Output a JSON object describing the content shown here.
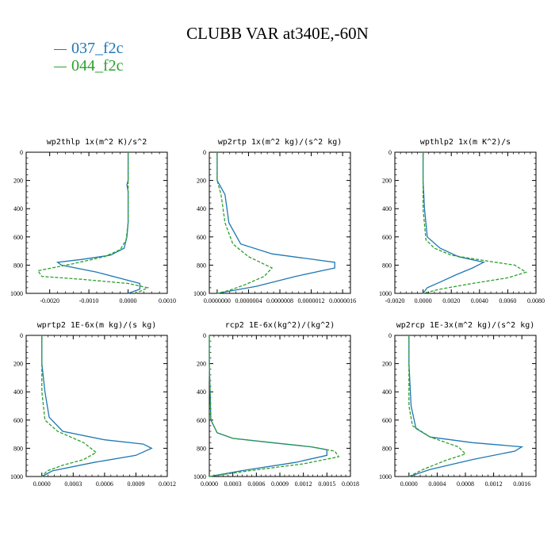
{
  "title": "CLUBB VAR at340E,-60N",
  "legend": [
    {
      "label": "037_f2c",
      "color": "#1f77b4"
    },
    {
      "label": "044_f2c",
      "color": "#2ca02c"
    }
  ],
  "chart_data": [
    {
      "type": "line",
      "title": "wp2thlp   1x(m^2 K)/s^2",
      "xlim": [
        -0.0026,
        0.001
      ],
      "ylim": [
        1000,
        0
      ],
      "xticks": [
        -0.002,
        -0.001,
        0.0,
        0.001
      ],
      "xtick_labels": [
        "-0.0020",
        "-0.0010",
        "0.0000",
        "0.0010"
      ],
      "yticks": [
        0,
        200,
        400,
        600,
        800,
        1000
      ],
      "series": [
        {
          "name": "037_f2c",
          "x": [
            0,
            0,
            -3e-05,
            0,
            0,
            -3e-05,
            -0.0001,
            -0.00045,
            -0.0012,
            -0.0018,
            -0.0017,
            -0.0008,
            0.0003,
            0.0003,
            0
          ],
          "y": [
            0,
            200,
            230,
            280,
            500,
            600,
            680,
            730,
            760,
            780,
            800,
            850,
            930,
            970,
            1000
          ]
        },
        {
          "name": "044_f2c",
          "x": [
            0,
            0,
            0,
            0,
            -5e-05,
            -0.0002,
            -0.0006,
            -0.0014,
            -0.0023,
            -0.0022,
            -0.0012,
            0,
            0.0005,
            0.0002
          ],
          "y": [
            0,
            200,
            280,
            500,
            620,
            690,
            740,
            790,
            840,
            880,
            900,
            930,
            960,
            1000
          ]
        }
      ]
    },
    {
      "type": "line",
      "title": "wp2rtp   1x(m^2 kg)/(s^2 kg)",
      "xlim": [
        -1e-07,
        1.7e-06
      ],
      "ylim": [
        1000,
        0
      ],
      "xticks": [
        0.0,
        4e-07,
        8e-07,
        1.2e-06,
        1.6e-06
      ],
      "xtick_labels": [
        "0.0000000",
        "0.0000004",
        "0.0000008",
        "0.0000012",
        "0.0000016"
      ],
      "yticks": [
        0,
        200,
        400,
        600,
        800,
        1000
      ],
      "series": [
        {
          "name": "037_f2c",
          "x": [
            0,
            0,
            1e-07,
            1.5e-07,
            3e-07,
            7e-07,
            1.5e-06,
            1.5e-06,
            1e-06,
            5e-07,
            0
          ],
          "y": [
            0,
            200,
            300,
            500,
            650,
            720,
            780,
            820,
            880,
            950,
            1000
          ]
        },
        {
          "name": "044_f2c",
          "x": [
            0,
            0,
            5e-08,
            1e-07,
            2e-07,
            4e-07,
            7e-07,
            6e-07,
            3.5e-07,
            1.5e-07,
            0
          ],
          "y": [
            0,
            200,
            300,
            500,
            650,
            740,
            820,
            880,
            940,
            980,
            1000
          ]
        }
      ]
    },
    {
      "type": "line",
      "title": "wpthlp2   1x(m K^2)/s",
      "xlim": [
        -0.002,
        0.008
      ],
      "ylim": [
        1000,
        0
      ],
      "xticks": [
        -0.002,
        0.0,
        0.002,
        0.004,
        0.006,
        0.008
      ],
      "xtick_labels": [
        "-0.0020",
        "0.0000",
        "0.0020",
        "0.0040",
        "0.0060",
        "0.0080"
      ],
      "yticks": [
        0,
        200,
        400,
        600,
        800,
        1000
      ],
      "series": [
        {
          "name": "037_f2c",
          "x": [
            0,
            0,
            0.0001,
            0.0003,
            0.0012,
            0.0025,
            0.0043,
            0.0035,
            0.0023,
            0.0012,
            0.0003,
            0
          ],
          "y": [
            0,
            200,
            400,
            600,
            680,
            740,
            780,
            820,
            870,
            920,
            960,
            1000
          ]
        },
        {
          "name": "044_f2c",
          "x": [
            0,
            0,
            0,
            0.0002,
            0.0008,
            0.002,
            0.0045,
            0.0065,
            0.0073,
            0.006,
            0.0035,
            0.0012,
            0
          ],
          "y": [
            0,
            200,
            400,
            620,
            680,
            730,
            770,
            800,
            850,
            890,
            930,
            970,
            1000
          ]
        }
      ]
    },
    {
      "type": "line",
      "title": "wprtp2   1E-6x(m kg)/(s kg)",
      "xlim": [
        -0.00015,
        0.0012
      ],
      "ylim": [
        1000,
        0
      ],
      "xticks": [
        0.0,
        0.0003,
        0.0006,
        0.0009,
        0.0012
      ],
      "xtick_labels": [
        "0.0000",
        "0.0003",
        "0.0006",
        "0.0009",
        "0.0012"
      ],
      "yticks": [
        0,
        200,
        400,
        600,
        800,
        1000
      ],
      "series": [
        {
          "name": "037_f2c",
          "x": [
            0,
            0,
            3e-05,
            7e-05,
            0.0002,
            0.0006,
            0.00097,
            0.00105,
            0.0009,
            0.0005,
            0.0001,
            0
          ],
          "y": [
            0,
            200,
            400,
            580,
            680,
            740,
            770,
            800,
            850,
            900,
            960,
            1000
          ]
        },
        {
          "name": "044_f2c",
          "x": [
            0,
            0,
            0,
            3e-05,
            0.00015,
            0.0004,
            0.00052,
            0.0004,
            0.0002,
            5e-05,
            0
          ],
          "y": [
            0,
            200,
            400,
            600,
            680,
            760,
            830,
            880,
            920,
            960,
            1000
          ]
        }
      ]
    },
    {
      "type": "line",
      "title": "rcp2   1E-6x(kg^2)/(kg^2)",
      "xlim": [
        0.0,
        0.0018
      ],
      "ylim": [
        1000,
        0
      ],
      "xticks": [
        0.0,
        0.0003,
        0.0006,
        0.0009,
        0.0012,
        0.0015,
        0.0018
      ],
      "xtick_labels": [
        "0.0000",
        "0.0003",
        "0.0006",
        "0.0009",
        "0.0012",
        "0.0015",
        "0.0018"
      ],
      "yticks": [
        0,
        200,
        400,
        600,
        800,
        1000
      ],
      "series": [
        {
          "name": "037_f2c",
          "x": [
            0,
            0,
            2e-05,
            0.0001,
            0.0003,
            0.0008,
            0.0013,
            0.0015,
            0.0015,
            0.0011,
            0.0004,
            0
          ],
          "y": [
            0,
            200,
            600,
            690,
            730,
            760,
            790,
            810,
            850,
            900,
            960,
            1000
          ]
        },
        {
          "name": "044_f2c",
          "x": [
            0,
            0,
            2e-05,
            0.0001,
            0.0003,
            0.0008,
            0.0013,
            0.0016,
            0.00165,
            0.0012,
            0.0005,
            0
          ],
          "y": [
            0,
            200,
            600,
            690,
            730,
            760,
            790,
            820,
            860,
            910,
            960,
            1000
          ]
        }
      ]
    },
    {
      "type": "line",
      "title": "wp2rcp   1E-3x(m^2 kg)/(s^2 kg)",
      "xlim": [
        -0.0002,
        0.0018
      ],
      "ylim": [
        1000,
        0
      ],
      "xticks": [
        0.0,
        0.0004,
        0.0008,
        0.0012,
        0.0016
      ],
      "xtick_labels": [
        "0.0000",
        "0.0004",
        "0.0008",
        "0.0012",
        "0.0016"
      ],
      "yticks": [
        0,
        200,
        400,
        600,
        800,
        1000
      ],
      "series": [
        {
          "name": "037_f2c",
          "x": [
            0,
            0,
            3e-05,
            0.0001,
            0.0003,
            0.0009,
            0.0016,
            0.0015,
            0.0009,
            0.0003,
            0
          ],
          "y": [
            0,
            200,
            500,
            660,
            720,
            760,
            790,
            820,
            880,
            950,
            1000
          ]
        },
        {
          "name": "044_f2c",
          "x": [
            0,
            0,
            0,
            5e-05,
            0.0003,
            0.0007,
            0.0008,
            0.0005,
            0.0002,
            0
          ],
          "y": [
            0,
            200,
            500,
            640,
            720,
            790,
            840,
            890,
            950,
            1000
          ]
        }
      ]
    }
  ]
}
